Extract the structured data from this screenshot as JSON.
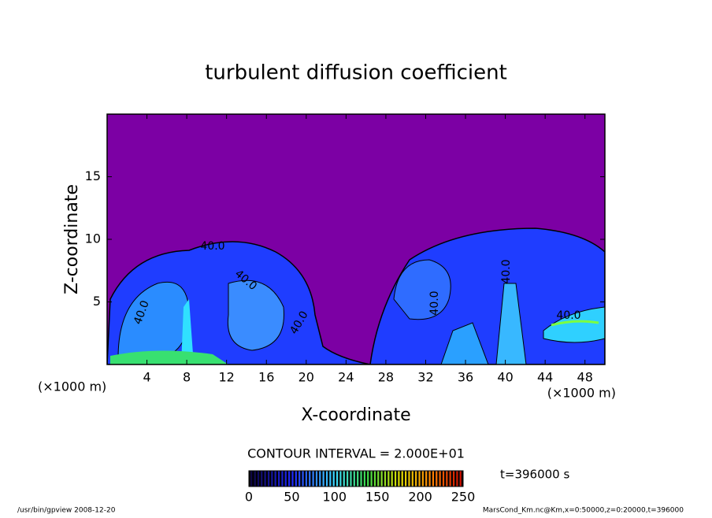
{
  "chart_data": {
    "type": "contour",
    "title": "turbulent diffusion coefficient",
    "xlabel": "X-coordinate",
    "ylabel": "Z-coordinate",
    "xunit": "(×1000 m)",
    "yunit": "(×1000 m)",
    "xlim": [
      0,
      50
    ],
    "xticks": [
      4,
      8,
      12,
      16,
      20,
      24,
      28,
      32,
      36,
      40,
      44,
      48
    ],
    "ylim": [
      0,
      20
    ],
    "yticks": [
      5,
      10,
      15
    ],
    "contour_labels": [
      "40.0",
      "40.0",
      "40.0",
      "40.0",
      "40.0",
      "40.0",
      "40.0"
    ],
    "contour_interval": "CONTOUR INTERVAL = 2.000E+01",
    "time": "t=396000 s",
    "clim": [
      0,
      250
    ],
    "cticks": [
      0,
      50,
      100,
      150,
      200,
      250
    ],
    "footer_left": "/usr/bin/gpview   2008-12-20",
    "footer_right": "MarsCond_Km.nc@Km,x=0:50000,z=0:20000,t=396000"
  }
}
